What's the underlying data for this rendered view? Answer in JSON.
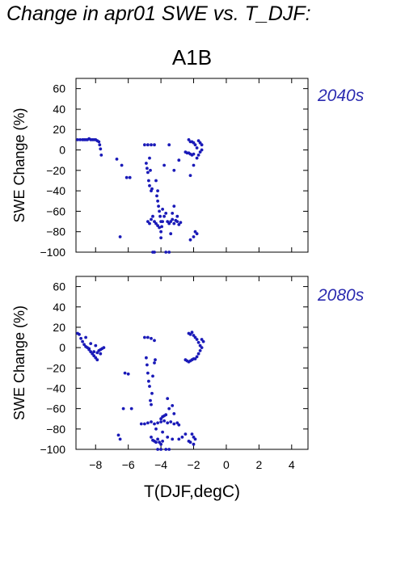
{
  "title": "Change in apr01 SWE vs. T_DJF:",
  "scenario": "A1B",
  "xlabel": "T(DJF,degC)",
  "colors": {
    "points": "#1a1ab8",
    "decade_label": "#2b2bb0"
  },
  "chart_data": [
    {
      "type": "scatter",
      "panel_label": "2040s",
      "ylabel": "SWE Change (%)",
      "xlabel": "",
      "xlim": [
        -9.2,
        5.0
      ],
      "ylim": [
        -100,
        70
      ],
      "xticks": [
        -8,
        -6,
        -4,
        -2,
        0,
        2,
        4
      ],
      "yticks": [
        60,
        40,
        20,
        0,
        -20,
        -40,
        -60,
        -80,
        -100
      ],
      "series": [
        {
          "points": [
            [
              -9.1,
              10
            ],
            [
              -8.95,
              10
            ],
            [
              -8.8,
              10
            ],
            [
              -8.7,
              10
            ],
            [
              -8.6,
              10
            ],
            [
              -8.5,
              10
            ],
            [
              -8.4,
              11
            ],
            [
              -8.3,
              10
            ],
            [
              -8.2,
              10
            ],
            [
              -8.1,
              10
            ],
            [
              -8.0,
              10
            ],
            [
              -7.9,
              9
            ],
            [
              -7.8,
              8
            ],
            [
              -7.75,
              5
            ],
            [
              -7.7,
              1
            ],
            [
              -7.65,
              -5
            ],
            [
              -6.7,
              -9
            ],
            [
              -6.5,
              -85
            ],
            [
              -6.4,
              -15
            ],
            [
              -6.1,
              -27
            ],
            [
              -5.9,
              -27
            ],
            [
              -5.0,
              5
            ],
            [
              -4.8,
              5
            ],
            [
              -4.6,
              5
            ],
            [
              -4.4,
              5
            ],
            [
              -4.9,
              -13
            ],
            [
              -4.85,
              -18
            ],
            [
              -4.8,
              -22
            ],
            [
              -4.75,
              -30
            ],
            [
              -4.7,
              -35
            ],
            [
              -4.65,
              -20
            ],
            [
              -4.6,
              -40
            ],
            [
              -4.55,
              -38
            ],
            [
              -4.7,
              -8
            ],
            [
              -4.3,
              -30
            ],
            [
              -4.25,
              -45
            ],
            [
              -4.2,
              -50
            ],
            [
              -4.15,
              -55
            ],
            [
              -4.1,
              -60
            ],
            [
              -4.05,
              -65
            ],
            [
              -4.0,
              -70
            ],
            [
              -3.95,
              -75
            ],
            [
              -3.9,
              -58
            ],
            [
              -4.2,
              -40
            ],
            [
              -4.8,
              -70
            ],
            [
              -4.7,
              -72
            ],
            [
              -4.6,
              -68
            ],
            [
              -4.5,
              -65
            ],
            [
              -4.4,
              -70
            ],
            [
              -4.3,
              -72
            ],
            [
              -4.2,
              -74
            ],
            [
              -4.1,
              -76
            ],
            [
              -4.0,
              -80
            ],
            [
              -3.9,
              -70
            ],
            [
              -3.8,
              -65
            ],
            [
              -3.7,
              -62
            ],
            [
              -3.6,
              -70
            ],
            [
              -3.5,
              -72
            ],
            [
              -3.4,
              -70
            ],
            [
              -3.3,
              -68
            ],
            [
              -3.2,
              -72
            ],
            [
              -3.1,
              -69
            ],
            [
              -3.0,
              -70
            ],
            [
              -2.9,
              -73
            ],
            [
              -2.8,
              -71
            ],
            [
              -3.3,
              -62
            ],
            [
              -3.0,
              -65
            ],
            [
              -4.0,
              -86
            ],
            [
              -3.7,
              -100
            ],
            [
              -4.5,
              -100
            ],
            [
              -4.4,
              -100
            ],
            [
              -3.5,
              -100
            ],
            [
              -3.4,
              -82
            ],
            [
              -3.2,
              -55
            ],
            [
              -3.8,
              -15
            ],
            [
              -3.5,
              5
            ],
            [
              -3.2,
              -20
            ],
            [
              -2.9,
              -10
            ],
            [
              -2.3,
              10
            ],
            [
              -2.2,
              8
            ],
            [
              -2.1,
              8
            ],
            [
              -2.0,
              7
            ],
            [
              -1.9,
              5
            ],
            [
              -1.8,
              2
            ],
            [
              -1.7,
              9
            ],
            [
              -1.6,
              7
            ],
            [
              -1.5,
              5
            ],
            [
              -1.5,
              0
            ],
            [
              -1.6,
              -2
            ],
            [
              -1.7,
              -5
            ],
            [
              -1.8,
              -8
            ],
            [
              -2.5,
              -2
            ],
            [
              -2.4,
              -3
            ],
            [
              -2.3,
              -3
            ],
            [
              -2.2,
              -4
            ],
            [
              -2.1,
              -5
            ],
            [
              -2.0,
              -4
            ],
            [
              -2.2,
              -25
            ],
            [
              -2.0,
              -15
            ],
            [
              -1.9,
              -80
            ],
            [
              -1.8,
              -82
            ],
            [
              -2.2,
              -88
            ],
            [
              -2.0,
              -85
            ]
          ]
        }
      ]
    },
    {
      "type": "scatter",
      "panel_label": "2080s",
      "ylabel": "SWE Change (%)",
      "xlabel": "T(DJF,degC)",
      "xlim": [
        -9.2,
        5.0
      ],
      "ylim": [
        -100,
        70
      ],
      "xticks": [
        -8,
        -6,
        -4,
        -2,
        0,
        2,
        4
      ],
      "yticks": [
        60,
        40,
        20,
        0,
        -20,
        -40,
        -60,
        -80,
        -100
      ],
      "series": [
        {
          "points": [
            [
              -9.1,
              14
            ],
            [
              -9.0,
              13
            ],
            [
              -8.9,
              9
            ],
            [
              -8.8,
              6
            ],
            [
              -8.7,
              3
            ],
            [
              -8.6,
              1
            ],
            [
              -8.5,
              0
            ],
            [
              -8.4,
              -2
            ],
            [
              -8.3,
              -4
            ],
            [
              -8.2,
              -6
            ],
            [
              -8.1,
              -8
            ],
            [
              -8.0,
              -10
            ],
            [
              -7.9,
              -5
            ],
            [
              -7.8,
              -3
            ],
            [
              -7.7,
              -2
            ],
            [
              -7.6,
              -1
            ],
            [
              -7.5,
              0
            ],
            [
              -8.6,
              10
            ],
            [
              -8.3,
              4
            ],
            [
              -8.0,
              2
            ],
            [
              -7.7,
              -6
            ],
            [
              -7.9,
              -12
            ],
            [
              -8.4,
              -1
            ],
            [
              -8.1,
              -4
            ],
            [
              -6.6,
              -86
            ],
            [
              -6.5,
              -90
            ],
            [
              -6.3,
              -60
            ],
            [
              -6.2,
              -25
            ],
            [
              -6.0,
              -26
            ],
            [
              -5.8,
              -60
            ],
            [
              -5.0,
              10
            ],
            [
              -4.8,
              10
            ],
            [
              -4.6,
              9
            ],
            [
              -4.4,
              7
            ],
            [
              -4.9,
              -10
            ],
            [
              -4.85,
              -17
            ],
            [
              -4.8,
              -25
            ],
            [
              -4.75,
              -33
            ],
            [
              -4.7,
              -38
            ],
            [
              -4.65,
              -52
            ],
            [
              -4.6,
              -56
            ],
            [
              -4.55,
              -45
            ],
            [
              -4.5,
              -28
            ],
            [
              -4.4,
              -15
            ],
            [
              -4.35,
              -12
            ],
            [
              -5.2,
              -75
            ],
            [
              -5.0,
              -75
            ],
            [
              -4.8,
              -74
            ],
            [
              -4.6,
              -73
            ],
            [
              -4.4,
              -75
            ],
            [
              -4.2,
              -74
            ],
            [
              -4.0,
              -73
            ],
            [
              -3.8,
              -72
            ],
            [
              -3.6,
              -74
            ],
            [
              -3.4,
              -73
            ],
            [
              -3.2,
              -75
            ],
            [
              -3.0,
              -74
            ],
            [
              -2.9,
              -76
            ],
            [
              -4.0,
              -70
            ],
            [
              -3.9,
              -68
            ],
            [
              -3.8,
              -67
            ],
            [
              -3.7,
              -66
            ],
            [
              -3.5,
              -60
            ],
            [
              -3.6,
              -50
            ],
            [
              -3.3,
              -57
            ],
            [
              -3.2,
              -65
            ],
            [
              -4.6,
              -88
            ],
            [
              -4.5,
              -91
            ],
            [
              -4.4,
              -92
            ],
            [
              -4.3,
              -93
            ],
            [
              -4.2,
              -90
            ],
            [
              -4.1,
              -93
            ],
            [
              -4.0,
              -95
            ],
            [
              -3.9,
              -92
            ],
            [
              -4.2,
              -100
            ],
            [
              -4.0,
              -100
            ],
            [
              -3.7,
              -100
            ],
            [
              -3.5,
              -100
            ],
            [
              -4.3,
              -80
            ],
            [
              -3.9,
              -83
            ],
            [
              -3.6,
              -88
            ],
            [
              -3.3,
              -90
            ],
            [
              -2.9,
              -90
            ],
            [
              -2.7,
              -88
            ],
            [
              -2.5,
              -85
            ],
            [
              -2.3,
              14
            ],
            [
              -2.2,
              13
            ],
            [
              -2.1,
              15
            ],
            [
              -2.0,
              12
            ],
            [
              -1.9,
              10
            ],
            [
              -1.8,
              8
            ],
            [
              -1.7,
              5
            ],
            [
              -1.6,
              2
            ],
            [
              -1.5,
              0
            ],
            [
              -1.6,
              -3
            ],
            [
              -1.7,
              -6
            ],
            [
              -1.8,
              -9
            ],
            [
              -1.9,
              -11
            ],
            [
              -2.5,
              -12
            ],
            [
              -2.4,
              -13
            ],
            [
              -2.3,
              -14
            ],
            [
              -2.2,
              -13
            ],
            [
              -2.1,
              -12
            ],
            [
              -2.0,
              -11
            ],
            [
              -1.5,
              8
            ],
            [
              -1.4,
              6
            ],
            [
              -2.1,
              -85
            ],
            [
              -2.0,
              -88
            ],
            [
              -1.9,
              -90
            ],
            [
              -2.3,
              -92
            ],
            [
              -2.2,
              -93
            ],
            [
              -2.0,
              -95
            ]
          ]
        }
      ]
    }
  ]
}
